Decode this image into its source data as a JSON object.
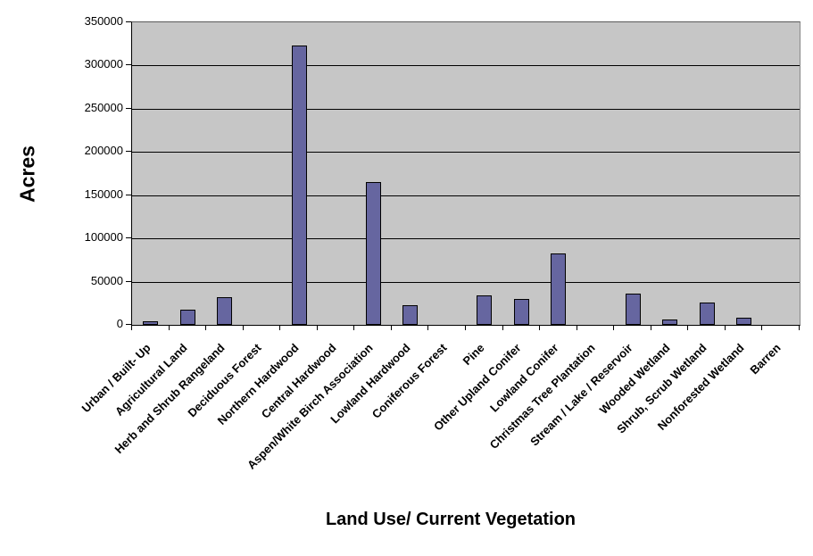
{
  "chart_data": {
    "type": "bar",
    "title": "",
    "xlabel": "Land Use/ Current Vegetation",
    "ylabel": "Acres",
    "categories": [
      "Urban / Built- Up",
      "Agricultural Land",
      "Herb and Shrub Rangeland",
      "Deciduous Forest",
      "Northern Hardwood",
      "Central Hardwood",
      "Aspen/White Birch Association",
      "Lowland Hardwood",
      "Coniferous Forest",
      "Pine",
      "Other Upland Conifer",
      "Lowland Conifer",
      "Christmas Tree Plantation",
      "Stream / Lake / Reservoir",
      "Wooded Wetland",
      "Shrub, Scrub Wetland",
      "Nonforested Wetland",
      "Barren"
    ],
    "values": [
      4500,
      18000,
      32000,
      0,
      323000,
      0,
      165000,
      22500,
      0,
      34000,
      30000,
      83000,
      0,
      36000,
      6000,
      26000,
      8000,
      0
    ],
    "ylim": [
      0,
      350000
    ],
    "ytick_step": 50000,
    "ytick_labels": [
      "0",
      "50000",
      "100000",
      "150000",
      "200000",
      "250000",
      "300000",
      "350000"
    ],
    "grid": "horizontal-major",
    "legend_position": "none",
    "colors": {
      "bar_fill": "#6666A0",
      "bar_border": "#000000",
      "plot_bg": "#C6C6C6",
      "gridline": "#000000",
      "chart_bg": "#FFFFFF"
    }
  }
}
